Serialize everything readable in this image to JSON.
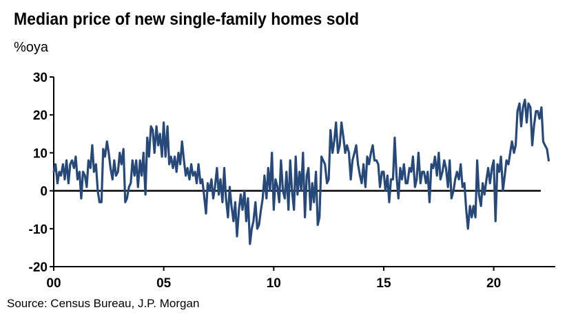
{
  "chart_data": {
    "type": "line",
    "title": "Median price of new single-family homes sold",
    "subtitle": "%oya",
    "source": "Source: Census Bureau, J.P. Morgan",
    "xlabel": "",
    "ylabel": "",
    "xlim": [
      2000,
      2022.8
    ],
    "ylim": [
      -20,
      30
    ],
    "x_ticks": [
      {
        "value": 2000,
        "label": "00"
      },
      {
        "value": 2005,
        "label": "05"
      },
      {
        "value": 2010,
        "label": "10"
      },
      {
        "value": 2015,
        "label": "15"
      },
      {
        "value": 2020,
        "label": "20"
      }
    ],
    "y_ticks": [
      {
        "value": 30,
        "label": "30"
      },
      {
        "value": 20,
        "label": "20"
      },
      {
        "value": 10,
        "label": "10"
      },
      {
        "value": 0,
        "label": "0"
      },
      {
        "value": -10,
        "label": "-10"
      },
      {
        "value": -20,
        "label": "-20"
      }
    ],
    "zero_line": true,
    "grid": false,
    "line_color": "#27497a",
    "series": [
      {
        "points": [
          [
            2000.0,
            5
          ],
          [
            2000.08,
            7
          ],
          [
            2000.17,
            2
          ],
          [
            2000.25,
            5
          ],
          [
            2000.33,
            4
          ],
          [
            2000.42,
            7
          ],
          [
            2000.5,
            3
          ],
          [
            2000.58,
            8
          ],
          [
            2000.67,
            2
          ],
          [
            2000.75,
            7
          ],
          [
            2000.83,
            8
          ],
          [
            2000.92,
            6
          ],
          [
            2001.0,
            9
          ],
          [
            2001.08,
            3
          ],
          [
            2001.17,
            5
          ],
          [
            2001.25,
            -2
          ],
          [
            2001.33,
            5
          ],
          [
            2001.42,
            4
          ],
          [
            2001.5,
            1
          ],
          [
            2001.58,
            8
          ],
          [
            2001.67,
            6
          ],
          [
            2001.75,
            12
          ],
          [
            2001.83,
            5
          ],
          [
            2001.92,
            7
          ],
          [
            2002.0,
            0
          ],
          [
            2002.08,
            -3
          ],
          [
            2002.17,
            -3
          ],
          [
            2002.25,
            11
          ],
          [
            2002.33,
            9
          ],
          [
            2002.42,
            13
          ],
          [
            2002.5,
            10
          ],
          [
            2002.58,
            6
          ],
          [
            2002.67,
            3
          ],
          [
            2002.75,
            8
          ],
          [
            2002.83,
            4
          ],
          [
            2002.92,
            5
          ],
          [
            2003.0,
            10
          ],
          [
            2003.08,
            7
          ],
          [
            2003.17,
            11
          ],
          [
            2003.25,
            -3
          ],
          [
            2003.33,
            -2
          ],
          [
            2003.42,
            1
          ],
          [
            2003.5,
            2
          ],
          [
            2003.58,
            8
          ],
          [
            2003.67,
            4
          ],
          [
            2003.75,
            8
          ],
          [
            2003.83,
            1
          ],
          [
            2003.92,
            8
          ],
          [
            2004.0,
            4
          ],
          [
            2004.08,
            10
          ],
          [
            2004.17,
            -1
          ],
          [
            2004.25,
            14
          ],
          [
            2004.33,
            9
          ],
          [
            2004.42,
            17
          ],
          [
            2004.5,
            16
          ],
          [
            2004.58,
            10
          ],
          [
            2004.67,
            17
          ],
          [
            2004.75,
            12
          ],
          [
            2004.83,
            15
          ],
          [
            2004.92,
            9
          ],
          [
            2005.0,
            18
          ],
          [
            2005.08,
            9
          ],
          [
            2005.17,
            17
          ],
          [
            2005.25,
            7
          ],
          [
            2005.33,
            9
          ],
          [
            2005.42,
            6
          ],
          [
            2005.5,
            9
          ],
          [
            2005.58,
            5
          ],
          [
            2005.67,
            10
          ],
          [
            2005.75,
            7
          ],
          [
            2005.83,
            13
          ],
          [
            2005.92,
            8
          ],
          [
            2006.0,
            4
          ],
          [
            2006.08,
            6
          ],
          [
            2006.17,
            3
          ],
          [
            2006.25,
            7
          ],
          [
            2006.33,
            4
          ],
          [
            2006.42,
            5
          ],
          [
            2006.5,
            2
          ],
          [
            2006.58,
            7
          ],
          [
            2006.67,
            2
          ],
          [
            2006.75,
            3
          ],
          [
            2006.83,
            -1
          ],
          [
            2006.92,
            -6
          ],
          [
            2007.0,
            2
          ],
          [
            2007.08,
            0
          ],
          [
            2007.17,
            3
          ],
          [
            2007.25,
            -2
          ],
          [
            2007.33,
            1
          ],
          [
            2007.42,
            6
          ],
          [
            2007.5,
            -1
          ],
          [
            2007.58,
            3
          ],
          [
            2007.67,
            -3
          ],
          [
            2007.75,
            6
          ],
          [
            2007.83,
            -2
          ],
          [
            2007.92,
            -7
          ],
          [
            2008.0,
            1
          ],
          [
            2008.08,
            -4
          ],
          [
            2008.17,
            -8
          ],
          [
            2008.25,
            -3
          ],
          [
            2008.33,
            -12
          ],
          [
            2008.42,
            -5
          ],
          [
            2008.5,
            -1
          ],
          [
            2008.58,
            -5
          ],
          [
            2008.67,
            0
          ],
          [
            2008.75,
            -8
          ],
          [
            2008.83,
            -2
          ],
          [
            2008.92,
            -14
          ],
          [
            2009.0,
            -10
          ],
          [
            2009.08,
            -8
          ],
          [
            2009.17,
            -3
          ],
          [
            2009.25,
            -10
          ],
          [
            2009.33,
            -9
          ],
          [
            2009.42,
            -5
          ],
          [
            2009.5,
            -2
          ],
          [
            2009.58,
            4
          ],
          [
            2009.67,
            -2
          ],
          [
            2009.75,
            6
          ],
          [
            2009.83,
            0
          ],
          [
            2009.92,
            10
          ],
          [
            2010.0,
            -5
          ],
          [
            2010.08,
            3
          ],
          [
            2010.17,
            1
          ],
          [
            2010.25,
            -3
          ],
          [
            2010.33,
            8
          ],
          [
            2010.42,
            0
          ],
          [
            2010.5,
            -2
          ],
          [
            2010.58,
            5
          ],
          [
            2010.67,
            -5
          ],
          [
            2010.75,
            8
          ],
          [
            2010.83,
            0
          ],
          [
            2010.92,
            -5
          ],
          [
            2011.0,
            9
          ],
          [
            2011.08,
            -1
          ],
          [
            2011.17,
            5
          ],
          [
            2011.25,
            0
          ],
          [
            2011.33,
            10
          ],
          [
            2011.42,
            -7
          ],
          [
            2011.5,
            4
          ],
          [
            2011.58,
            6
          ],
          [
            2011.67,
            -5
          ],
          [
            2011.75,
            2
          ],
          [
            2011.83,
            -3
          ],
          [
            2011.92,
            5
          ],
          [
            2012.0,
            -9
          ],
          [
            2012.08,
            -7
          ],
          [
            2012.17,
            9
          ],
          [
            2012.25,
            8
          ],
          [
            2012.33,
            7
          ],
          [
            2012.42,
            2
          ],
          [
            2012.5,
            3
          ],
          [
            2012.58,
            16
          ],
          [
            2012.67,
            10
          ],
          [
            2012.75,
            13
          ],
          [
            2012.83,
            18
          ],
          [
            2012.92,
            10
          ],
          [
            2013.0,
            12
          ],
          [
            2013.08,
            18
          ],
          [
            2013.17,
            14
          ],
          [
            2013.25,
            10
          ],
          [
            2013.33,
            12
          ],
          [
            2013.42,
            10
          ],
          [
            2013.5,
            3
          ],
          [
            2013.58,
            8
          ],
          [
            2013.67,
            10
          ],
          [
            2013.75,
            12
          ],
          [
            2013.83,
            7
          ],
          [
            2013.92,
            4
          ],
          [
            2014.0,
            2
          ],
          [
            2014.08,
            7
          ],
          [
            2014.17,
            1
          ],
          [
            2014.25,
            9
          ],
          [
            2014.33,
            7
          ],
          [
            2014.42,
            10
          ],
          [
            2014.5,
            12
          ],
          [
            2014.58,
            8
          ],
          [
            2014.67,
            8
          ],
          [
            2014.75,
            7
          ],
          [
            2014.83,
            1
          ],
          [
            2014.92,
            5
          ],
          [
            2015.0,
            5
          ],
          [
            2015.08,
            0
          ],
          [
            2015.17,
            4
          ],
          [
            2015.25,
            -3
          ],
          [
            2015.33,
            3
          ],
          [
            2015.42,
            3
          ],
          [
            2015.5,
            14
          ],
          [
            2015.58,
            4
          ],
          [
            2015.67,
            -2
          ],
          [
            2015.75,
            6
          ],
          [
            2015.83,
            3
          ],
          [
            2015.92,
            7
          ],
          [
            2016.0,
            2
          ],
          [
            2016.08,
            2
          ],
          [
            2016.17,
            6
          ],
          [
            2016.25,
            5
          ],
          [
            2016.33,
            9
          ],
          [
            2016.42,
            1
          ],
          [
            2016.5,
            3
          ],
          [
            2016.58,
            10
          ],
          [
            2016.67,
            2
          ],
          [
            2016.75,
            5
          ],
          [
            2016.83,
            5
          ],
          [
            2016.92,
            2
          ],
          [
            2017.0,
            5
          ],
          [
            2017.08,
            -3
          ],
          [
            2017.17,
            7
          ],
          [
            2017.25,
            6
          ],
          [
            2017.33,
            9
          ],
          [
            2017.42,
            4
          ],
          [
            2017.5,
            10
          ],
          [
            2017.58,
            3
          ],
          [
            2017.67,
            5
          ],
          [
            2017.75,
            8
          ],
          [
            2017.83,
            6
          ],
          [
            2017.92,
            1
          ],
          [
            2018.0,
            8
          ],
          [
            2018.08,
            -2
          ],
          [
            2018.17,
            0
          ],
          [
            2018.25,
            3
          ],
          [
            2018.33,
            5
          ],
          [
            2018.42,
            3
          ],
          [
            2018.5,
            7
          ],
          [
            2018.58,
            1
          ],
          [
            2018.67,
            2
          ],
          [
            2018.75,
            -5
          ],
          [
            2018.83,
            -10
          ],
          [
            2018.92,
            -4
          ],
          [
            2019.0,
            -7
          ],
          [
            2019.08,
            -4
          ],
          [
            2019.17,
            -7
          ],
          [
            2019.25,
            8
          ],
          [
            2019.33,
            -1
          ],
          [
            2019.42,
            -4
          ],
          [
            2019.5,
            2
          ],
          [
            2019.58,
            -1
          ],
          [
            2019.67,
            3
          ],
          [
            2019.75,
            6
          ],
          [
            2019.83,
            2
          ],
          [
            2019.92,
            6
          ],
          [
            2020.0,
            8
          ],
          [
            2020.08,
            -8
          ],
          [
            2020.17,
            7
          ],
          [
            2020.25,
            5
          ],
          [
            2020.33,
            9
          ],
          [
            2020.42,
            0
          ],
          [
            2020.5,
            4
          ],
          [
            2020.58,
            8
          ],
          [
            2020.67,
            7
          ],
          [
            2020.75,
            10
          ],
          [
            2020.83,
            13
          ],
          [
            2020.92,
            10
          ],
          [
            2021.0,
            12
          ],
          [
            2021.08,
            21
          ],
          [
            2021.17,
            23
          ],
          [
            2021.25,
            17
          ],
          [
            2021.33,
            22
          ],
          [
            2021.42,
            24
          ],
          [
            2021.5,
            18
          ],
          [
            2021.58,
            23
          ],
          [
            2021.67,
            22
          ],
          [
            2021.75,
            12
          ],
          [
            2021.83,
            17
          ],
          [
            2021.92,
            21
          ],
          [
            2022.0,
            21
          ],
          [
            2022.08,
            19
          ],
          [
            2022.17,
            22
          ],
          [
            2022.25,
            13
          ],
          [
            2022.33,
            12
          ],
          [
            2022.42,
            11
          ],
          [
            2022.5,
            8
          ]
        ]
      }
    ]
  }
}
